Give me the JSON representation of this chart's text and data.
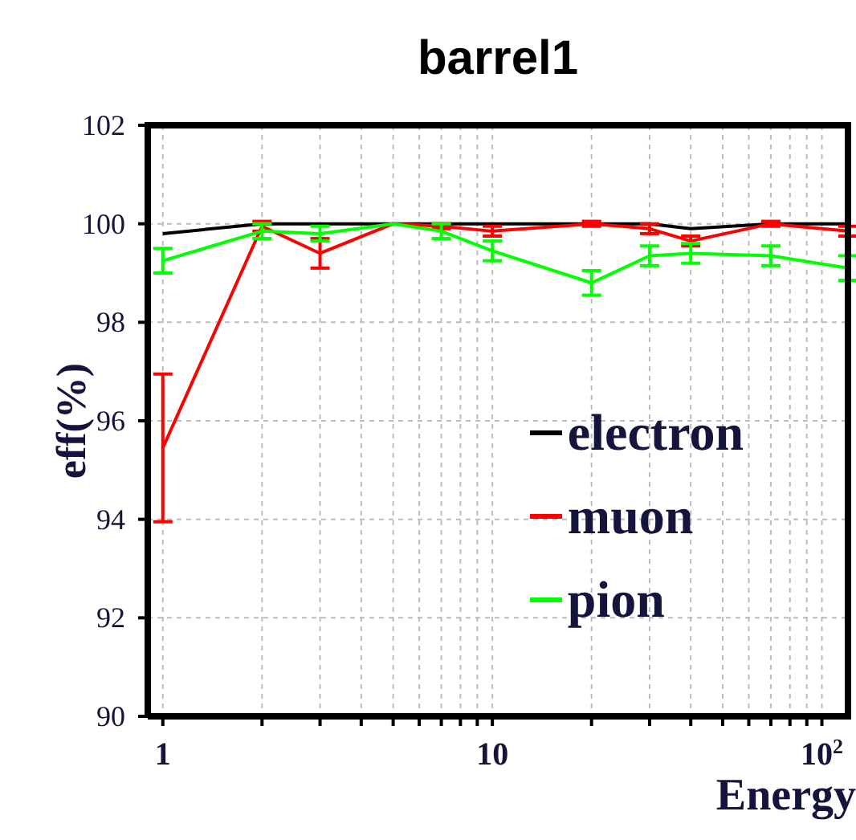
{
  "chart_data": {
    "type": "line",
    "title": "barrel1",
    "xlabel": "Energy",
    "ylabel": "eff(%)",
    "x": [
      1,
      2,
      3,
      5,
      7,
      10,
      20,
      30,
      40,
      70,
      120
    ],
    "series": [
      {
        "name": "electron",
        "color": "#000000",
        "values": [
          99.8,
          100,
          100,
          100,
          100,
          100,
          100,
          100,
          99.9,
          100,
          100
        ]
      },
      {
        "name": "muon",
        "color": "#ff0000",
        "values": [
          95.45,
          99.95,
          99.4,
          100,
          99.95,
          99.85,
          100,
          99.9,
          99.65,
          100,
          99.85
        ],
        "errors": [
          1.5,
          0.1,
          0.3,
          null,
          0.05,
          0.1,
          0.05,
          0.1,
          0.1,
          0.05,
          0.1
        ]
      },
      {
        "name": "pion",
        "color": "#00ff00",
        "values": [
          99.25,
          99.85,
          99.8,
          100,
          99.85,
          99.45,
          98.8,
          99.35,
          99.4,
          99.35,
          99.1
        ],
        "errors": [
          0.25,
          0.15,
          0.15,
          null,
          0.15,
          0.2,
          0.25,
          0.2,
          0.2,
          0.2,
          0.25
        ]
      }
    ],
    "log": "x",
    "xlim": [
      0.9,
      120
    ],
    "ylim": [
      90,
      102
    ],
    "xticks": [
      1,
      {
        "value": 2,
        "label": null
      },
      {
        "value": 3,
        "label": null
      },
      {
        "value": 4,
        "label": null
      },
      {
        "value": 5,
        "label": null
      },
      {
        "value": 6,
        "label": null
      },
      {
        "value": 7,
        "label": null
      },
      {
        "value": 8,
        "label": null
      },
      {
        "value": 9,
        "label": null
      },
      10,
      {
        "value": 20,
        "label": null
      },
      {
        "value": 30,
        "label": null
      },
      {
        "value": 40,
        "label": null
      },
      {
        "value": 50,
        "label": null
      },
      {
        "value": 60,
        "label": null
      },
      {
        "value": 70,
        "label": null
      },
      {
        "value": 80,
        "label": null
      },
      {
        "value": 90,
        "label": null
      },
      {
        "value": 100,
        "label": "10$^{2}$"
      }
    ],
    "yticks": [
      90,
      92,
      94,
      96,
      98,
      100,
      102
    ],
    "grid": true,
    "legend": "right",
    "marker": "none",
    "line_style": "solid"
  }
}
